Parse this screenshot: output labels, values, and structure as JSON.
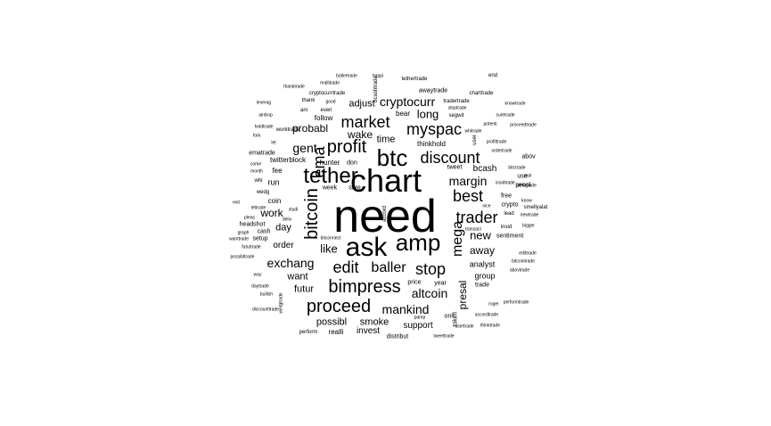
{
  "colors": {
    "background": "#ffffff",
    "text": "#000000"
  },
  "words": [
    {
      "text": "need",
      "size": 52,
      "vertical": false
    },
    {
      "text": "chart",
      "size": 36,
      "vertical": false
    },
    {
      "text": "ask",
      "size": 30,
      "vertical": false
    },
    {
      "text": "amp",
      "size": 26,
      "vertical": false
    },
    {
      "text": "btc",
      "size": 26,
      "vertical": false
    },
    {
      "text": "tether",
      "size": 24,
      "vertical": false
    },
    {
      "text": "profit",
      "size": 20,
      "vertical": false
    },
    {
      "text": "bitcoin",
      "size": 20,
      "vertical": true
    },
    {
      "text": "bimpress",
      "size": 20,
      "vertical": false
    },
    {
      "text": "proceed",
      "size": 20,
      "vertical": false
    },
    {
      "text": "market",
      "size": 18,
      "vertical": false
    },
    {
      "text": "myspac",
      "size": 18,
      "vertical": false
    },
    {
      "text": "discount",
      "size": 18,
      "vertical": false
    },
    {
      "text": "ema",
      "size": 18,
      "vertical": true
    },
    {
      "text": "edit",
      "size": 18,
      "vertical": false
    },
    {
      "text": "trader",
      "size": 18,
      "vertical": false
    },
    {
      "text": "best",
      "size": 18,
      "vertical": false
    },
    {
      "text": "stop",
      "size": 18,
      "vertical": false
    },
    {
      "text": "mega",
      "size": 16,
      "vertical": true
    },
    {
      "text": "baller",
      "size": 16,
      "vertical": false
    },
    {
      "text": "exchang",
      "size": 14,
      "vertical": false
    },
    {
      "text": "gent",
      "size": 14,
      "vertical": false
    },
    {
      "text": "margin",
      "size": 14,
      "vertical": false
    },
    {
      "text": "mankind",
      "size": 14,
      "vertical": false
    },
    {
      "text": "altcoin",
      "size": 14,
      "vertical": false
    },
    {
      "text": "cryptocurr",
      "size": 14,
      "vertical": false
    },
    {
      "text": "long",
      "size": 13,
      "vertical": false
    },
    {
      "text": "new",
      "size": 13,
      "vertical": false
    },
    {
      "text": "like",
      "size": 13,
      "vertical": false
    },
    {
      "text": "away",
      "size": 12,
      "vertical": false
    },
    {
      "text": "presal",
      "size": 12,
      "vertical": true
    },
    {
      "text": "wake",
      "size": 12,
      "vertical": false
    },
    {
      "text": "probabl",
      "size": 12,
      "vertical": false
    },
    {
      "text": "work",
      "size": 12,
      "vertical": false
    },
    {
      "text": "smoke",
      "size": 11,
      "vertical": false
    },
    {
      "text": "possibl",
      "size": 11,
      "vertical": false
    },
    {
      "text": "futur",
      "size": 11,
      "vertical": false
    },
    {
      "text": "want",
      "size": 11,
      "vertical": false
    },
    {
      "text": "adjust",
      "size": 11,
      "vertical": false
    },
    {
      "text": "day",
      "size": 11,
      "vertical": false
    },
    {
      "text": "time",
      "size": 11,
      "vertical": false
    },
    {
      "text": "order",
      "size": 10,
      "vertical": false
    },
    {
      "text": "invest",
      "size": 10,
      "vertical": false
    },
    {
      "text": "support",
      "size": 10,
      "vertical": false
    },
    {
      "text": "analyst",
      "size": 9,
      "vertical": false
    },
    {
      "text": "group",
      "size": 9,
      "vertical": false
    },
    {
      "text": "bcash",
      "size": 10,
      "vertical": false
    },
    {
      "text": "run",
      "size": 9,
      "vertical": false
    },
    {
      "text": "hunter",
      "size": 8,
      "vertical": false
    },
    {
      "text": "twitterblock",
      "size": 8,
      "vertical": false
    },
    {
      "text": "follow",
      "size": 8,
      "vertical": false
    },
    {
      "text": "thinkhold",
      "size": 8,
      "vertical": false
    },
    {
      "text": "bear",
      "size": 8,
      "vertical": false
    },
    {
      "text": "fee",
      "size": 8,
      "vertical": false
    },
    {
      "text": "coin",
      "size": 8,
      "vertical": false
    },
    {
      "text": "cash",
      "size": 7,
      "vertical": false
    },
    {
      "text": "setup",
      "size": 7,
      "vertical": false
    },
    {
      "text": "headshot",
      "size": 7,
      "vertical": false
    },
    {
      "text": "week",
      "size": 7,
      "vertical": false
    },
    {
      "text": "sure",
      "size": 7,
      "vertical": false
    },
    {
      "text": "don",
      "size": 7,
      "vertical": false
    },
    {
      "text": "tweet",
      "size": 7,
      "vertical": false
    },
    {
      "text": "trade",
      "size": 7,
      "vertical": false
    },
    {
      "text": "year",
      "size": 7,
      "vertical": false
    },
    {
      "text": "price",
      "size": 7,
      "vertical": false
    },
    {
      "text": "onli",
      "size": 7,
      "vertical": false
    },
    {
      "text": "token",
      "size": 7,
      "vertical": true
    },
    {
      "text": "user",
      "size": 6,
      "vertical": true
    },
    {
      "text": "insid",
      "size": 6,
      "vertical": false
    },
    {
      "text": "lead",
      "size": 6,
      "vertical": false
    },
    {
      "text": "crypto",
      "size": 7,
      "vertical": false
    },
    {
      "text": "free",
      "size": 7,
      "vertical": false
    },
    {
      "text": "peopl",
      "size": 7,
      "vertical": false
    },
    {
      "text": "use",
      "size": 7,
      "vertical": false
    },
    {
      "text": "abov",
      "size": 7,
      "vertical": false
    },
    {
      "text": "sentiment",
      "size": 7,
      "vertical": false
    },
    {
      "text": "distribut",
      "size": 7,
      "vertical": false
    },
    {
      "text": "realli",
      "size": 8,
      "vertical": false
    },
    {
      "text": "perform",
      "size": 6,
      "vertical": false
    },
    {
      "text": "wedg",
      "size": 6,
      "vertical": false
    },
    {
      "text": "ematrade",
      "size": 7,
      "vertical": false
    },
    {
      "text": "worktrade",
      "size": 6,
      "vertical": false
    },
    {
      "text": "bcashtrade",
      "size": 6,
      "vertical": true
    },
    {
      "text": "awaytrade",
      "size": 7,
      "vertical": false
    },
    {
      "text": "cryptocurrtrade",
      "size": 6,
      "vertical": false
    },
    {
      "text": "tethertrade",
      "size": 6,
      "vertical": false
    },
    {
      "text": "segwit",
      "size": 6,
      "vertical": false
    },
    {
      "text": "tradertrade",
      "size": 6,
      "vertical": false
    },
    {
      "text": "charttrade",
      "size": 6,
      "vertical": false
    },
    {
      "text": "knowtrade",
      "size": 5,
      "vertical": false
    },
    {
      "text": "suretrade",
      "size": 5,
      "vertical": false
    },
    {
      "text": "proceedtrade",
      "size": 5,
      "vertical": false
    },
    {
      "text": "whitrade",
      "size": 5,
      "vertical": false
    },
    {
      "text": "profittrade",
      "size": 5,
      "vertical": false
    },
    {
      "text": "bitctrade",
      "size": 5,
      "vertical": false
    },
    {
      "text": "delivtrade",
      "size": 5,
      "vertical": false
    },
    {
      "text": "insidtrade",
      "size": 5,
      "vertical": false
    },
    {
      "text": "smellyalat",
      "size": 6,
      "vertical": false
    },
    {
      "text": "newtrade",
      "size": 5,
      "vertical": false
    },
    {
      "text": "bigger",
      "size": 5,
      "vertical": false
    },
    {
      "text": "edittrade",
      "size": 5,
      "vertical": false
    },
    {
      "text": "bitcointrade",
      "size": 5,
      "vertical": false
    },
    {
      "text": "abovtrade",
      "size": 5,
      "vertical": false
    },
    {
      "text": "roger",
      "size": 5,
      "vertical": false
    },
    {
      "text": "accordtrade",
      "size": 5,
      "vertical": false
    },
    {
      "text": "thinktrade",
      "size": 5,
      "vertical": false
    },
    {
      "text": "usertrade",
      "size": 5,
      "vertical": false
    },
    {
      "text": "pamp",
      "size": 5,
      "vertical": false
    },
    {
      "text": "tweettrade",
      "size": 5,
      "vertical": false
    },
    {
      "text": "discounttrade",
      "size": 5,
      "vertical": false
    },
    {
      "text": "daytrade",
      "size": 5,
      "vertical": false
    },
    {
      "text": "bullish",
      "size": 5,
      "vertical": false
    },
    {
      "text": "way",
      "size": 5,
      "vertical": false
    },
    {
      "text": "possibltrade",
      "size": 5,
      "vertical": false
    },
    {
      "text": "wanttrade",
      "size": 5,
      "vertical": false
    },
    {
      "text": "graph",
      "size": 5,
      "vertical": false
    },
    {
      "text": "futurtrade",
      "size": 5,
      "vertical": false
    },
    {
      "text": "pleas",
      "size": 5,
      "vertical": false
    },
    {
      "text": "exit",
      "size": 5,
      "vertical": false
    },
    {
      "text": "lettrade",
      "size": 5,
      "vertical": false
    },
    {
      "text": "whi",
      "size": 6,
      "vertical": false
    },
    {
      "text": "month",
      "size": 5,
      "vertical": false
    },
    {
      "text": "come",
      "size": 5,
      "vertical": false
    },
    {
      "text": "let",
      "size": 5,
      "vertical": false
    },
    {
      "text": "fork",
      "size": 5,
      "vertical": false
    },
    {
      "text": "holdtrade",
      "size": 5,
      "vertical": false
    },
    {
      "text": "airdrop",
      "size": 5,
      "vertical": false
    },
    {
      "text": "leverag",
      "size": 5,
      "vertical": false
    },
    {
      "text": "thanktrade",
      "size": 5,
      "vertical": false
    },
    {
      "text": "reallitrade",
      "size": 5,
      "vertical": false
    },
    {
      "text": "ballertrade",
      "size": 5,
      "vertical": false
    },
    {
      "text": "happi",
      "size": 5,
      "vertical": false
    },
    {
      "text": "stoptrade",
      "size": 5,
      "vertical": false
    },
    {
      "text": "potenti",
      "size": 5,
      "vertical": false
    },
    {
      "text": "ordertrade",
      "size": 5,
      "vertical": false
    },
    {
      "text": "real",
      "size": 5,
      "vertical": false
    },
    {
      "text": "know",
      "size": 5,
      "vertical": false
    },
    {
      "text": "nice",
      "size": 5,
      "vertical": false
    },
    {
      "text": "transact",
      "size": 5,
      "vertical": false
    },
    {
      "text": "bitconnect",
      "size": 5,
      "vertical": false
    },
    {
      "text": "deliv",
      "size": 5,
      "vertical": false
    },
    {
      "text": "studi",
      "size": 5,
      "vertical": false
    },
    {
      "text": "ani",
      "size": 6,
      "vertical": false
    },
    {
      "text": "everi",
      "size": 6,
      "vertical": false
    },
    {
      "text": "thank",
      "size": 6,
      "vertical": false
    },
    {
      "text": "good",
      "size": 5,
      "vertical": false
    },
    {
      "text": "end",
      "size": 6,
      "vertical": false
    },
    {
      "text": "performtrade",
      "size": 5,
      "vertical": false
    },
    {
      "text": "wedgtrade",
      "size": 5,
      "vertical": true
    },
    {
      "text": "accord",
      "size": 6,
      "vertical": true
    }
  ]
}
